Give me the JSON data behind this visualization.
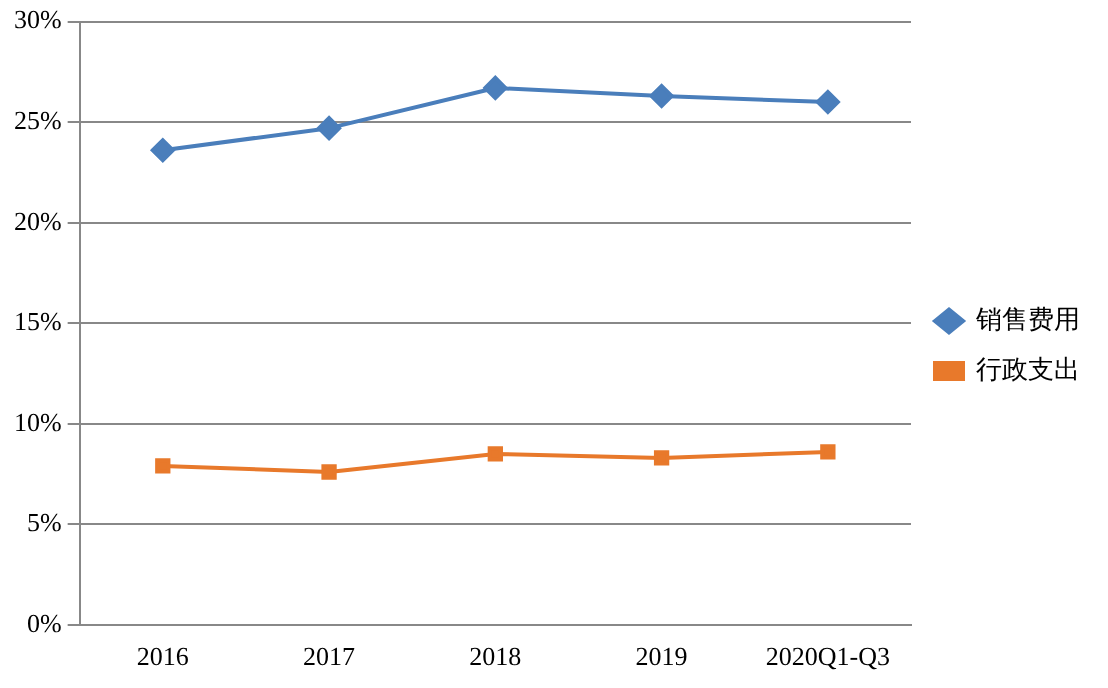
{
  "chart_data": {
    "type": "line",
    "categories": [
      "2016",
      "2017",
      "2018",
      "2019",
      "2020Q1-Q3"
    ],
    "series": [
      {
        "name": "销售费用",
        "color": "#4a7ebb",
        "marker": "diamond",
        "values": [
          23.6,
          24.7,
          26.7,
          26.3,
          26.0
        ]
      },
      {
        "name": "行政支出",
        "color": "#e8792b",
        "marker": "square",
        "values": [
          7.9,
          7.6,
          8.5,
          8.3,
          8.6
        ]
      }
    ],
    "ylim": [
      0,
      30
    ],
    "yticks": [
      {
        "value": 0,
        "label": "0%"
      },
      {
        "value": 5,
        "label": "5%"
      },
      {
        "value": 10,
        "label": "10%"
      },
      {
        "value": 15,
        "label": "15%"
      },
      {
        "value": 20,
        "label": "20%"
      },
      {
        "value": 25,
        "label": "25%"
      },
      {
        "value": 30,
        "label": "30%"
      }
    ],
    "grid": "y",
    "legend": "right",
    "line_style": "solid"
  }
}
